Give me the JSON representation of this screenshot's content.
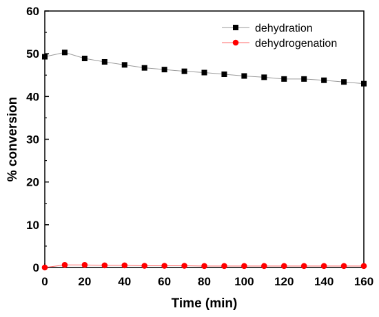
{
  "chart_data": {
    "type": "line",
    "title": "",
    "xlabel": "Time (min)",
    "ylabel": "% conversion",
    "xlim": [
      0,
      160
    ],
    "ylim": [
      0,
      60
    ],
    "xticks": [
      "0",
      "20",
      "40",
      "60",
      "80",
      "100",
      "120",
      "140",
      "160"
    ],
    "yticks": [
      "0",
      "10",
      "20",
      "30",
      "40",
      "50",
      "60"
    ],
    "grid": false,
    "legend_position": "top-right",
    "x": [
      0,
      10,
      20,
      30,
      40,
      50,
      60,
      70,
      80,
      90,
      100,
      110,
      120,
      130,
      140,
      150,
      160
    ],
    "series": [
      {
        "name": "dehydration",
        "marker": "square",
        "marker_color": "#000000",
        "line_color": "#9a9a9a",
        "values": [
          49.3,
          50.3,
          48.9,
          48.1,
          47.4,
          46.7,
          46.3,
          45.9,
          45.6,
          45.2,
          44.8,
          44.5,
          44.1,
          44.1,
          43.8,
          43.4,
          43.0
        ]
      },
      {
        "name": "dehydrogenation",
        "marker": "circle",
        "marker_color": "#ff0000",
        "line_color": "#ff6a6a",
        "values": [
          0.0,
          0.6,
          0.6,
          0.5,
          0.5,
          0.4,
          0.4,
          0.4,
          0.35,
          0.35,
          0.35,
          0.35,
          0.35,
          0.35,
          0.35,
          0.35,
          0.35
        ]
      }
    ]
  }
}
